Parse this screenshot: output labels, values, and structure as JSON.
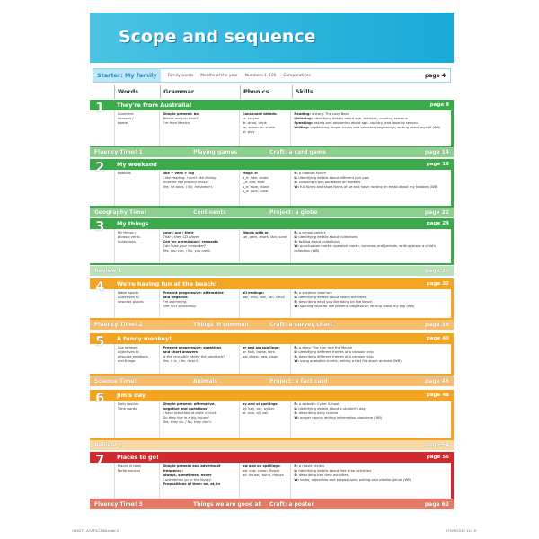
{
  "title": "Scope and sequence",
  "starter": {
    "label": "Starter: My family",
    "items": [
      "Family words",
      "Months of the year",
      "Numbers 1–100",
      "Comparatives"
    ],
    "page": "page 4"
  },
  "columns": [
    "Words",
    "Grammar",
    "Phonics",
    "Skills"
  ],
  "colors": {
    "green": "#3aaa4a",
    "green_bar": "#8dcf8f",
    "green_review": "#b9e2b9",
    "orange": "#f5a421",
    "orange_bar": "#f7bd6a",
    "orange_review": "#fbd9a4",
    "red": "#d3282c",
    "red_bar": "#e17b68"
  },
  "rows": [
    {
      "type": "unit",
      "theme": "green",
      "num": "1",
      "title": "They're from Australia!",
      "page": "page 8",
      "words": [
        "Countries",
        "Seasons /",
        "Home"
      ],
      "grammar": [
        [
          "b",
          "Simple present: be"
        ],
        [
          "i",
          "Where are you from?"
        ],
        [
          "i",
          "I'm from Mexico."
        ]
      ],
      "phonics": [
        [
          "b",
          "Consonant blends:"
        ],
        [
          "t",
          "cr: crayon"
        ],
        [
          "t",
          "dr: draw, drink"
        ],
        [
          "t",
          "sp: spoon    sn: snake"
        ],
        [
          "t",
          "pl: play"
        ]
      ],
      "skills": [
        [
          "Reading:",
          "a story: The Lazy Bear"
        ],
        [
          "Listening:",
          "identifying details about age, birthday, country, seasons"
        ],
        [
          "Speaking:",
          "asking and answering about age, country, and favorite season"
        ],
        [
          "Writing:",
          "capitalizing proper nouns and sentence beginnings; writing about myself (WB)"
        ]
      ]
    },
    {
      "type": "bar",
      "theme": "green_bar",
      "a": "Fluency Time! 1",
      "b": "Playing games",
      "c": "Craft: a card game",
      "page": "page 14"
    },
    {
      "type": "unit",
      "theme": "green",
      "num": "2",
      "title": "My weekend",
      "page": "page 16",
      "words": [
        "Hobbies"
      ],
      "grammar": [
        [
          "b",
          "like + verb + ing"
        ],
        [
          "i",
          "I like reading.    I don't like fishing."
        ],
        [
          "i",
          "Does he like playing chess?"
        ],
        [
          "i",
          "Yes, he does. / No, he doesn't."
        ]
      ],
      "phonics": [
        [
          "b",
          "Magic e:"
        ],
        [
          "t",
          "a_e: lake, skate"
        ],
        [
          "t",
          "i_e: kite, bike"
        ],
        [
          "t",
          "o_e: rope, stone"
        ],
        [
          "t",
          "u_e: June, cube"
        ]
      ],
      "skills": [
        [
          "R:",
          "a hobbies forum"
        ],
        [
          "L:",
          "identifying details about different pen pals"
        ],
        [
          "S:",
          "choosing a pen pal based on hobbies"
        ],
        [
          "W:",
          "full forms and short forms of be and have; writing an email about my hobbies (WB)"
        ]
      ]
    },
    {
      "type": "bar",
      "theme": "green_bar",
      "a": "Geography Time!",
      "b": "Continents",
      "c": "Project: a globe",
      "page": "page 22"
    },
    {
      "type": "unit",
      "theme": "green",
      "num": "3",
      "title": "My things",
      "page": "page 24",
      "words": [
        "My things /",
        "phrasal verbs",
        "Collections"
      ],
      "grammar": [
        [
          "b",
          "your / our / their"
        ],
        [
          "i",
          "That's their CD player."
        ],
        [
          "b",
          "Can for permission / requests"
        ],
        [
          "i",
          "Can I use your computer?"
        ],
        [
          "i",
          "Yes, you can. / No, you can't."
        ]
      ],
      "phonics": [
        [
          "b",
          "Words with ar:"
        ],
        [
          "t",
          "car, park, shark, star, scarf"
        ]
      ],
      "skills": [
        [
          "R:",
          "a school project"
        ],
        [
          "L:",
          "identifying details about collections"
        ],
        [
          "S:",
          "talking about collections"
        ],
        [
          "W:",
          "punctuation marks: question marks, commas, and periods; writing about a child's collection (WB)"
        ]
      ]
    },
    {
      "type": "review",
      "theme": "green_review",
      "a": "Review 1",
      "page": "page 30"
    },
    {
      "type": "unit",
      "theme": "orange",
      "num": "4",
      "title": "We're having fun at the beach!",
      "page": "page 32",
      "words": [
        "Water sports",
        "Adjectives to",
        "describe places"
      ],
      "grammar": [
        [
          "b",
          "Present progressive: affirmative"
        ],
        [
          "b",
          "and negative"
        ],
        [
          "i",
          "I'm swimming."
        ],
        [
          "i",
          "She isn't snorkeling."
        ]
      ],
      "phonics": [
        [
          "b",
          "all endings:"
        ],
        [
          "t",
          "ball, mall, wall, tall, small"
        ]
      ],
      "skills": [
        [
          "R:",
          "a vacation brochure"
        ],
        [
          "L:",
          "identifying details about beach activities"
        ],
        [
          "S:",
          "describing what you like doing on the beach"
        ],
        [
          "W:",
          "spelling rules for the present progressive; writing about my trip (WB)"
        ]
      ]
    },
    {
      "type": "bar",
      "theme": "orange_bar",
      "a": "Fluency Time! 2",
      "b": "Things in common",
      "c": "Craft: a survey chart",
      "page": "page 38"
    },
    {
      "type": "unit",
      "theme": "orange",
      "num": "5",
      "title": "A funny monkey!",
      "page": "page 40",
      "words": [
        "Zoo animals",
        "Adjectives to",
        "describe emotions",
        "and things"
      ],
      "grammar": [
        [
          "b",
          "Present progressive: questions"
        ],
        [
          "b",
          "and short answers"
        ],
        [
          "i",
          "Is the crocodile eating the sandwich?"
        ],
        [
          "i",
          "Yes, it is. / No, it isn't."
        ]
      ],
      "phonics": [
        [
          "b",
          "or and aw spellings:"
        ],
        [
          "t",
          "or: fork, horse, corn"
        ],
        [
          "t",
          "aw: straw, paw, yawn"
        ]
      ],
      "skills": [
        [
          "R:",
          "a story: The Lion and the Mouse"
        ],
        [
          "L:",
          "identifying different frames of a cartoon strip"
        ],
        [
          "S:",
          "describing different frames of a cartoon strip"
        ],
        [
          "W:",
          "using quotation marks; writing a fact file about animals (WB)"
        ]
      ]
    },
    {
      "type": "bar",
      "theme": "orange_bar",
      "a": "Science Time!",
      "b": "Animals",
      "c": "Project: a fact card",
      "page": "page 46"
    },
    {
      "type": "unit",
      "theme": "orange",
      "num": "6",
      "title": "Jim's day",
      "page": "page 48",
      "words": [
        "Daily routine",
        "Time words"
      ],
      "grammar": [
        [
          "b",
          "Simple present: affirmative,"
        ],
        [
          "b",
          "negative and questions"
        ],
        [
          "i",
          "I have breakfast at eight o'clock."
        ],
        [
          "i",
          "Do they live in a big house?"
        ],
        [
          "i",
          "Yes, they do. / No, they don't."
        ]
      ],
      "phonics": [
        [
          "b",
          "oy and oi spellings:"
        ],
        [
          "t",
          "oy: boy, toy, oyster"
        ],
        [
          "t",
          "oi: coin, oil, soil"
        ]
      ],
      "skills": [
        [
          "R:",
          "a website: Cyber School"
        ],
        [
          "L:",
          "identifying details about a student's day"
        ],
        [
          "S:",
          "describing daily routine"
        ],
        [
          "W:",
          "proper nouns; writing information about me (WB)"
        ]
      ]
    },
    {
      "type": "review",
      "theme": "orange_review",
      "a": "Review 2",
      "page": "page 54"
    },
    {
      "type": "unit",
      "theme": "red",
      "num": "7",
      "title": "Places to go!",
      "page": "page 56",
      "words": [
        "Places in town",
        "Performances"
      ],
      "grammar": [
        [
          "b",
          "Simple present and adverbs of"
        ],
        [
          "b",
          "frequency:"
        ],
        [
          "b",
          "always, sometimes, never"
        ],
        [
          "i",
          "I sometimes go to the library."
        ],
        [
          "b",
          "Prepositions of time: on, at, in"
        ]
      ],
      "phonics": [
        [
          "b",
          "ow and ou spellings:"
        ],
        [
          "t",
          "ow: cow, clown, flower"
        ],
        [
          "t",
          "ou: house, round, mouse"
        ]
      ],
      "skills": [
        [
          "R:",
          "a movie review"
        ],
        [
          "L:",
          "identifying details about free time activities"
        ],
        [
          "S:",
          "describing free time activities"
        ],
        [
          "W:",
          "verbs, adjectives and prepositions; writing an invitation email (WB)"
        ]
      ]
    },
    {
      "type": "bar",
      "theme": "red_bar",
      "a": "Fluency Time! 3",
      "b": "Things we are good at",
      "c": "Craft: a poster",
      "page": "page 62"
    }
  ],
  "footer": {
    "left": "r1f6271 A7AF2C3DB.indd   2",
    "right": "07/09/2015   12:19"
  }
}
